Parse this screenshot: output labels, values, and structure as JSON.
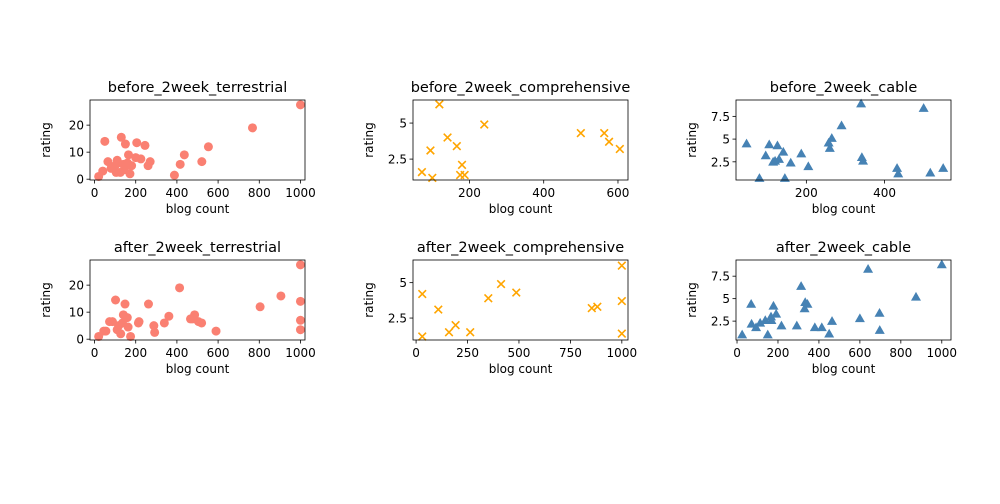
{
  "colors": {
    "terrestrial": "#fa8072",
    "comprehensive": "#ffa500",
    "cable": "#4682b4"
  },
  "chart_data": [
    {
      "type": "scatter",
      "marker": "circle",
      "color": "#fa8072",
      "title": "before_2week_terrestrial",
      "xlabel": "blog count",
      "ylabel": "rating",
      "xlim": [
        -22,
        1022
      ],
      "ylim": [
        -0.3,
        29.3
      ],
      "xticks": [
        0,
        200,
        400,
        600,
        800,
        1000
      ],
      "yticks": [
        0,
        10,
        20
      ],
      "x": [
        1000,
        767,
        553,
        521,
        436,
        416,
        388,
        270,
        260,
        245,
        225,
        205,
        200,
        180,
        172,
        165,
        160,
        150,
        145,
        140,
        130,
        125,
        115,
        110,
        105,
        100,
        80,
        65,
        50,
        40,
        20
      ],
      "y": [
        27.5,
        19.0,
        12.0,
        6.5,
        9.0,
        5.5,
        1.5,
        6.5,
        5.0,
        12.5,
        7.5,
        13.5,
        8.0,
        5.0,
        2.0,
        9.0,
        6.0,
        13.0,
        3.5,
        5.5,
        15.5,
        2.5,
        6.0,
        7.0,
        2.5,
        5.0,
        4.0,
        6.5,
        14.0,
        3.0,
        1.0
      ]
    },
    {
      "type": "scatter",
      "marker": "x",
      "color": "#ffa500",
      "title": "before_2week_comprehensive",
      "xlabel": "blog count",
      "ylabel": "rating",
      "xlim": [
        48,
        627
      ],
      "ylim": [
        1.05,
        6.6
      ],
      "xticks": [
        200,
        400,
        600
      ],
      "yticks": [
        2.5,
        5.0
      ],
      "x": [
        119,
        141,
        166,
        175,
        180,
        187,
        95,
        72,
        240,
        500,
        563,
        576,
        605,
        100
      ],
      "y": [
        6.3,
        4.0,
        3.4,
        1.4,
        2.1,
        1.4,
        3.1,
        1.6,
        4.9,
        4.3,
        4.3,
        3.7,
        3.2,
        1.2
      ]
    },
    {
      "type": "scatter",
      "marker": "triangle",
      "color": "#4682b4",
      "title": "before_2week_cable",
      "xlabel": "blog count",
      "ylabel": "rating",
      "xlim": [
        20,
        570
      ],
      "ylim": [
        0.5,
        9.3
      ],
      "xticks": [
        200,
        400
      ],
      "yticks": [
        2.5,
        5.0,
        7.5
      ],
      "x": [
        47,
        80,
        96,
        105,
        115,
        120,
        126,
        130,
        141,
        145,
        160,
        187,
        205,
        257,
        260,
        265,
        290,
        340,
        342,
        345,
        432,
        435,
        500,
        517,
        550
      ],
      "y": [
        4.5,
        0.7,
        3.2,
        4.4,
        2.5,
        2.6,
        4.3,
        2.8,
        3.6,
        0.7,
        2.4,
        3.4,
        2.0,
        4.6,
        4.0,
        5.1,
        6.5,
        8.9,
        3.0,
        2.6,
        1.8,
        1.2,
        8.4,
        1.3,
        1.8
      ]
    },
    {
      "type": "scatter",
      "marker": "circle",
      "color": "#fa8072",
      "title": "after_2week_terrestrial",
      "xlabel": "blog count",
      "ylabel": "rating",
      "xlim": [
        -22,
        1022
      ],
      "ylim": [
        -0.3,
        29.3
      ],
      "xticks": [
        0,
        200,
        400,
        600,
        800,
        1000
      ],
      "yticks": [
        0,
        10,
        20
      ],
      "x": [
        1000,
        1000,
        1000,
        1000,
        905,
        804,
        590,
        520,
        505,
        486,
        476,
        466,
        413,
        361,
        339,
        292,
        288,
        262,
        216,
        213,
        175,
        163,
        159,
        148,
        140,
        136,
        127,
        117,
        110,
        102,
        87,
        73,
        55,
        45,
        20
      ],
      "y": [
        27.5,
        14.0,
        7.0,
        3.5,
        16.0,
        12.0,
        3.0,
        6.0,
        6.5,
        9.0,
        7.5,
        7.5,
        19.0,
        8.5,
        6.0,
        2.5,
        5.0,
        13.0,
        6.5,
        6.0,
        1.0,
        4.5,
        8.0,
        13.0,
        9.0,
        6.0,
        2.0,
        5.0,
        3.5,
        14.5,
        6.5,
        6.5,
        3.0,
        3.0,
        1.0
      ]
    },
    {
      "type": "scatter",
      "marker": "x",
      "color": "#ffa500",
      "title": "after_2week_comprehensive",
      "xlabel": "blog count",
      "ylabel": "rating",
      "xlim": [
        -15,
        1030
      ],
      "ylim": [
        0.95,
        6.6
      ],
      "xticks": [
        0,
        250,
        500,
        750,
        1000
      ],
      "yticks": [
        2.5,
        5.0
      ],
      "x": [
        30,
        30,
        108,
        160,
        192,
        263,
        351,
        413,
        487,
        854,
        881,
        1000,
        1000,
        1000
      ],
      "y": [
        4.2,
        1.2,
        3.1,
        1.5,
        2.0,
        1.5,
        3.9,
        4.9,
        4.3,
        3.2,
        3.3,
        6.2,
        3.7,
        1.4
      ]
    },
    {
      "type": "scatter",
      "marker": "triangle",
      "color": "#4682b4",
      "title": "after_2week_cable",
      "xlabel": "blog count",
      "ylabel": "rating",
      "xlim": [
        -5,
        1045
      ],
      "ylim": [
        0.4,
        9.3
      ],
      "xticks": [
        0,
        200,
        400,
        600,
        800,
        1000
      ],
      "yticks": [
        2.5,
        5.0,
        7.5
      ],
      "x": [
        25,
        69,
        71,
        93,
        113,
        138,
        150,
        166,
        168,
        178,
        191,
        217,
        292,
        313,
        330,
        333,
        344,
        380,
        414,
        450,
        464,
        600,
        640,
        696,
        697,
        874,
        1000
      ],
      "y": [
        1.0,
        4.4,
        2.2,
        1.8,
        2.3,
        2.6,
        1.0,
        3.0,
        2.6,
        4.2,
        3.3,
        2.0,
        2.0,
        6.4,
        3.9,
        4.6,
        4.4,
        1.8,
        1.8,
        1.1,
        2.5,
        2.8,
        8.3,
        3.4,
        1.5,
        5.2,
        8.8
      ]
    }
  ]
}
